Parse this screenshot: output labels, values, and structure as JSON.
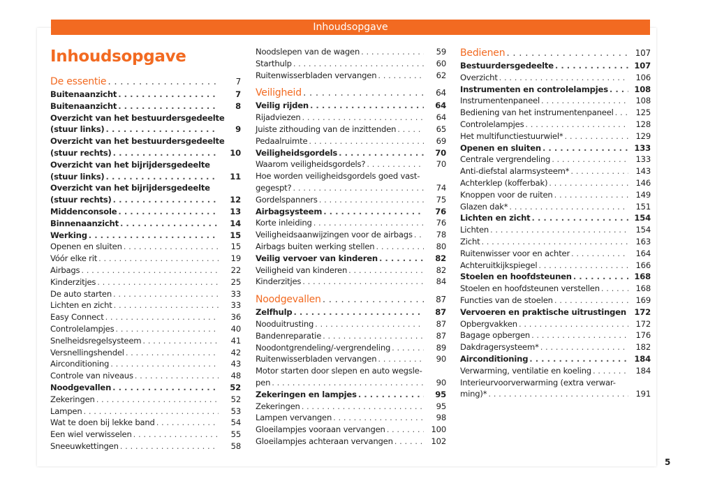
{
  "header": {
    "title": "Inhoudsopgave"
  },
  "page_title": "Inhoudsopgave",
  "page_number": "5",
  "accent_color": "#f26a21",
  "columns": [
    [
      {
        "s": "section",
        "lines": [
          "De essentie"
        ],
        "p": "7"
      },
      {
        "s": "bold",
        "lines": [
          "Buitenaanzicht"
        ],
        "p": "7"
      },
      {
        "s": "bold",
        "lines": [
          "Buitenaanzicht"
        ],
        "p": "8"
      },
      {
        "s": "bold",
        "lines": [
          "Overzicht van het bestuurdersgedeelte",
          "(stuur links)"
        ],
        "p": "9"
      },
      {
        "s": "bold",
        "lines": [
          "Overzicht van het bestuurdersgedeelte",
          "(stuur rechts)"
        ],
        "p": "10"
      },
      {
        "s": "bold",
        "lines": [
          "Overzicht van het bijrijdersgedeelte",
          "(stuur links)"
        ],
        "p": "11"
      },
      {
        "s": "bold",
        "lines": [
          "Overzicht van het bijrijdersgedeelte",
          "(stuur rechts)"
        ],
        "p": "12"
      },
      {
        "s": "bold",
        "lines": [
          "Middenconsole"
        ],
        "p": "13"
      },
      {
        "s": "bold",
        "lines": [
          "Binnenaanzicht"
        ],
        "p": "14"
      },
      {
        "s": "bold",
        "lines": [
          "Werking"
        ],
        "p": "15"
      },
      {
        "s": "",
        "lines": [
          "Openen en sluiten"
        ],
        "p": "15"
      },
      {
        "s": "",
        "lines": [
          "Vóór elke rit"
        ],
        "p": "19"
      },
      {
        "s": "",
        "lines": [
          "Airbags"
        ],
        "p": "22"
      },
      {
        "s": "",
        "lines": [
          "Kinderzitjes"
        ],
        "p": "25"
      },
      {
        "s": "",
        "lines": [
          "De auto starten"
        ],
        "p": "33"
      },
      {
        "s": "",
        "lines": [
          "Lichten en zicht"
        ],
        "p": "33"
      },
      {
        "s": "",
        "lines": [
          "Easy Connect"
        ],
        "p": "36"
      },
      {
        "s": "",
        "lines": [
          "Controlelampjes"
        ],
        "p": "40"
      },
      {
        "s": "",
        "lines": [
          "Snelheidsregelsysteem"
        ],
        "p": "41"
      },
      {
        "s": "",
        "lines": [
          "Versnellingshendel"
        ],
        "p": "42"
      },
      {
        "s": "",
        "lines": [
          "Airconditioning"
        ],
        "p": "43"
      },
      {
        "s": "",
        "lines": [
          "Controle van niveaus"
        ],
        "p": "48"
      },
      {
        "s": "bold",
        "lines": [
          "Noodgevallen"
        ],
        "p": "52"
      },
      {
        "s": "",
        "lines": [
          "Zekeringen"
        ],
        "p": "52"
      },
      {
        "s": "",
        "lines": [
          "Lampen"
        ],
        "p": "53"
      },
      {
        "s": "",
        "lines": [
          "Wat te doen bij lekke band"
        ],
        "p": "54"
      },
      {
        "s": "",
        "lines": [
          "Een wiel verwisselen"
        ],
        "p": "55"
      },
      {
        "s": "",
        "lines": [
          "Sneeuwkettingen"
        ],
        "p": "58"
      }
    ],
    [
      {
        "s": "",
        "lines": [
          "Noodslepen van de wagen"
        ],
        "p": "59"
      },
      {
        "s": "",
        "lines": [
          "Starthulp"
        ],
        "p": "60"
      },
      {
        "s": "",
        "lines": [
          "Ruitenwisserbladen vervangen"
        ],
        "p": "62"
      },
      {
        "s": "section",
        "lines": [
          "Veiligheid"
        ],
        "p": "64"
      },
      {
        "s": "bold",
        "lines": [
          "Veilig rijden"
        ],
        "p": "64"
      },
      {
        "s": "",
        "lines": [
          "Rijadviezen"
        ],
        "p": "64"
      },
      {
        "s": "",
        "lines": [
          "Juiste zithouding van de inzittenden"
        ],
        "p": "65"
      },
      {
        "s": "",
        "lines": [
          "Pedaalruimte"
        ],
        "p": "69"
      },
      {
        "s": "bold",
        "lines": [
          "Veiligheidsgordels"
        ],
        "p": "70"
      },
      {
        "s": "",
        "lines": [
          "Waarom veiligheidsgordels?"
        ],
        "p": "70"
      },
      {
        "s": "",
        "lines": [
          "Hoe worden veiligheidsgordels goed vast-",
          "gegespt?"
        ],
        "p": "74"
      },
      {
        "s": "",
        "lines": [
          "Gordelspanners"
        ],
        "p": "75"
      },
      {
        "s": "bold",
        "lines": [
          "Airbagsysteem"
        ],
        "p": "76"
      },
      {
        "s": "",
        "lines": [
          "Korte inleiding"
        ],
        "p": "76"
      },
      {
        "s": "",
        "lines": [
          "Veiligheidsaanwijzingen voor de airbags"
        ],
        "p": "78"
      },
      {
        "s": "",
        "lines": [
          "Airbags buiten werking stellen"
        ],
        "p": "80"
      },
      {
        "s": "bold",
        "lines": [
          "Veilig vervoer van kinderen"
        ],
        "p": "82"
      },
      {
        "s": "",
        "lines": [
          "Veiligheid van kinderen"
        ],
        "p": "82"
      },
      {
        "s": "",
        "lines": [
          "Kinderzitjes"
        ],
        "p": "84"
      },
      {
        "s": "section",
        "lines": [
          "Noodgevallen"
        ],
        "p": "87"
      },
      {
        "s": "bold",
        "lines": [
          "Zelfhulp"
        ],
        "p": "87"
      },
      {
        "s": "",
        "lines": [
          "Nooduitrusting"
        ],
        "p": "87"
      },
      {
        "s": "",
        "lines": [
          "Bandenreparatie"
        ],
        "p": "87"
      },
      {
        "s": "",
        "lines": [
          "Noodontgrendeling/-vergrendeling"
        ],
        "p": "89"
      },
      {
        "s": "",
        "lines": [
          "Ruitenwisserbladen vervangen"
        ],
        "p": "90"
      },
      {
        "s": "",
        "lines": [
          "Motor starten door slepen en auto wegsle-",
          "pen"
        ],
        "p": "90"
      },
      {
        "s": "bold",
        "lines": [
          "Zekeringen en lampjes"
        ],
        "p": "95"
      },
      {
        "s": "",
        "lines": [
          "Zekeringen"
        ],
        "p": "95"
      },
      {
        "s": "",
        "lines": [
          "Lampen vervangen"
        ],
        "p": "98"
      },
      {
        "s": "",
        "lines": [
          "Gloeilampjes vooraan vervangen"
        ],
        "p": "100"
      },
      {
        "s": "",
        "lines": [
          "Gloeilampjes achteraan vervangen"
        ],
        "p": "102"
      }
    ],
    [
      {
        "s": "section",
        "lines": [
          "Bedienen"
        ],
        "p": "107"
      },
      {
        "s": "bold",
        "lines": [
          "Bestuurdersgedeelte"
        ],
        "p": "107"
      },
      {
        "s": "",
        "lines": [
          "Overzicht"
        ],
        "p": "106"
      },
      {
        "s": "bold",
        "lines": [
          "Instrumenten en controlelampjes"
        ],
        "p": "108"
      },
      {
        "s": "",
        "lines": [
          "Instrumentenpaneel"
        ],
        "p": "108"
      },
      {
        "s": "",
        "lines": [
          "Bediening van het instrumentenpaneel"
        ],
        "p": "125"
      },
      {
        "s": "",
        "lines": [
          "Controlelampjes"
        ],
        "p": "128"
      },
      {
        "s": "",
        "lines": [
          "Het multifunctiestuurwiel*"
        ],
        "p": "129"
      },
      {
        "s": "bold",
        "lines": [
          "Openen en sluiten"
        ],
        "p": "133"
      },
      {
        "s": "",
        "lines": [
          "Centrale vergrendeling"
        ],
        "p": "133"
      },
      {
        "s": "",
        "lines": [
          "Anti-diefstal alarmsysteem*"
        ],
        "p": "143"
      },
      {
        "s": "",
        "lines": [
          "Achterklep (kofferbak)"
        ],
        "p": "146"
      },
      {
        "s": "",
        "lines": [
          "Knoppen voor de ruiten"
        ],
        "p": "149"
      },
      {
        "s": "",
        "lines": [
          "Glazen dak*"
        ],
        "p": "151"
      },
      {
        "s": "bold",
        "lines": [
          "Lichten en zicht"
        ],
        "p": "154"
      },
      {
        "s": "",
        "lines": [
          "Lichten"
        ],
        "p": "154"
      },
      {
        "s": "",
        "lines": [
          "Zicht"
        ],
        "p": "163"
      },
      {
        "s": "",
        "lines": [
          "Ruitenwisser voor en achter"
        ],
        "p": "164"
      },
      {
        "s": "",
        "lines": [
          "Achteruitkijkspiegel"
        ],
        "p": "166"
      },
      {
        "s": "bold",
        "lines": [
          "Stoelen en hoofdsteunen"
        ],
        "p": "168"
      },
      {
        "s": "",
        "lines": [
          "Stoelen en hoofdsteunen verstellen"
        ],
        "p": "168"
      },
      {
        "s": "",
        "lines": [
          "Functies van de stoelen"
        ],
        "p": "169"
      },
      {
        "s": "bold",
        "lines": [
          "Vervoeren en praktische uitrustingen"
        ],
        "p": "172"
      },
      {
        "s": "",
        "lines": [
          "Opbergvakken"
        ],
        "p": "172"
      },
      {
        "s": "",
        "lines": [
          "Bagage opbergen"
        ],
        "p": "176"
      },
      {
        "s": "",
        "lines": [
          "Dakdragersysteem*"
        ],
        "p": "182"
      },
      {
        "s": "bold",
        "lines": [
          "Airconditioning"
        ],
        "p": "184"
      },
      {
        "s": "",
        "lines": [
          "Verwarming, ventilatie en koeling"
        ],
        "p": "184"
      },
      {
        "s": "",
        "lines": [
          "Interieurvoorverwarming (extra verwar-",
          "ming)*"
        ],
        "p": "191"
      }
    ]
  ]
}
